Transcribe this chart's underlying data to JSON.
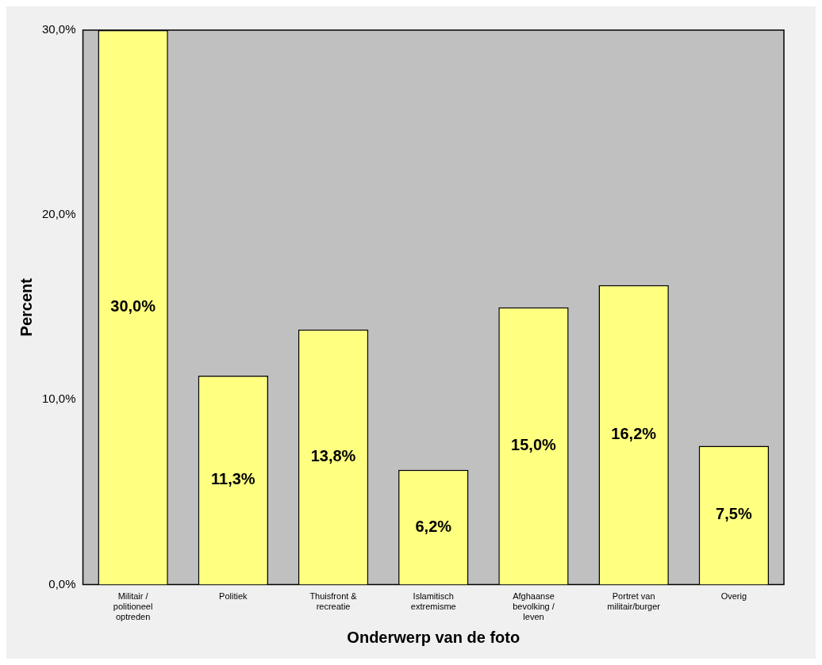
{
  "chart_data": {
    "type": "bar",
    "xlabel": "Onderwerp van de foto",
    "ylabel": "Percent",
    "categories": [
      "Militair /\npolitioneel\noptreden",
      "Politiek",
      "Thuisfront &\nrecreatie",
      "Islamitisch\nextremisme",
      "Afghaanse\nbevolking /\nleven",
      "Portret van\nmilitair/burger",
      "Overig"
    ],
    "values": [
      30.0,
      11.3,
      13.8,
      6.2,
      15.0,
      16.2,
      7.5
    ],
    "value_labels": [
      "30,0%",
      "11,3%",
      "13,8%",
      "6,2%",
      "15,0%",
      "16,2%",
      "7,5%"
    ],
    "color": "#ffff80",
    "ylim": [
      0,
      30
    ],
    "yticks": [
      {
        "value": 0,
        "label": "0,0%"
      },
      {
        "value": 10,
        "label": "10,0%"
      },
      {
        "value": 20,
        "label": "20,0%"
      },
      {
        "value": 30,
        "label": "30,0%"
      }
    ],
    "grid": false,
    "legend": false
  }
}
